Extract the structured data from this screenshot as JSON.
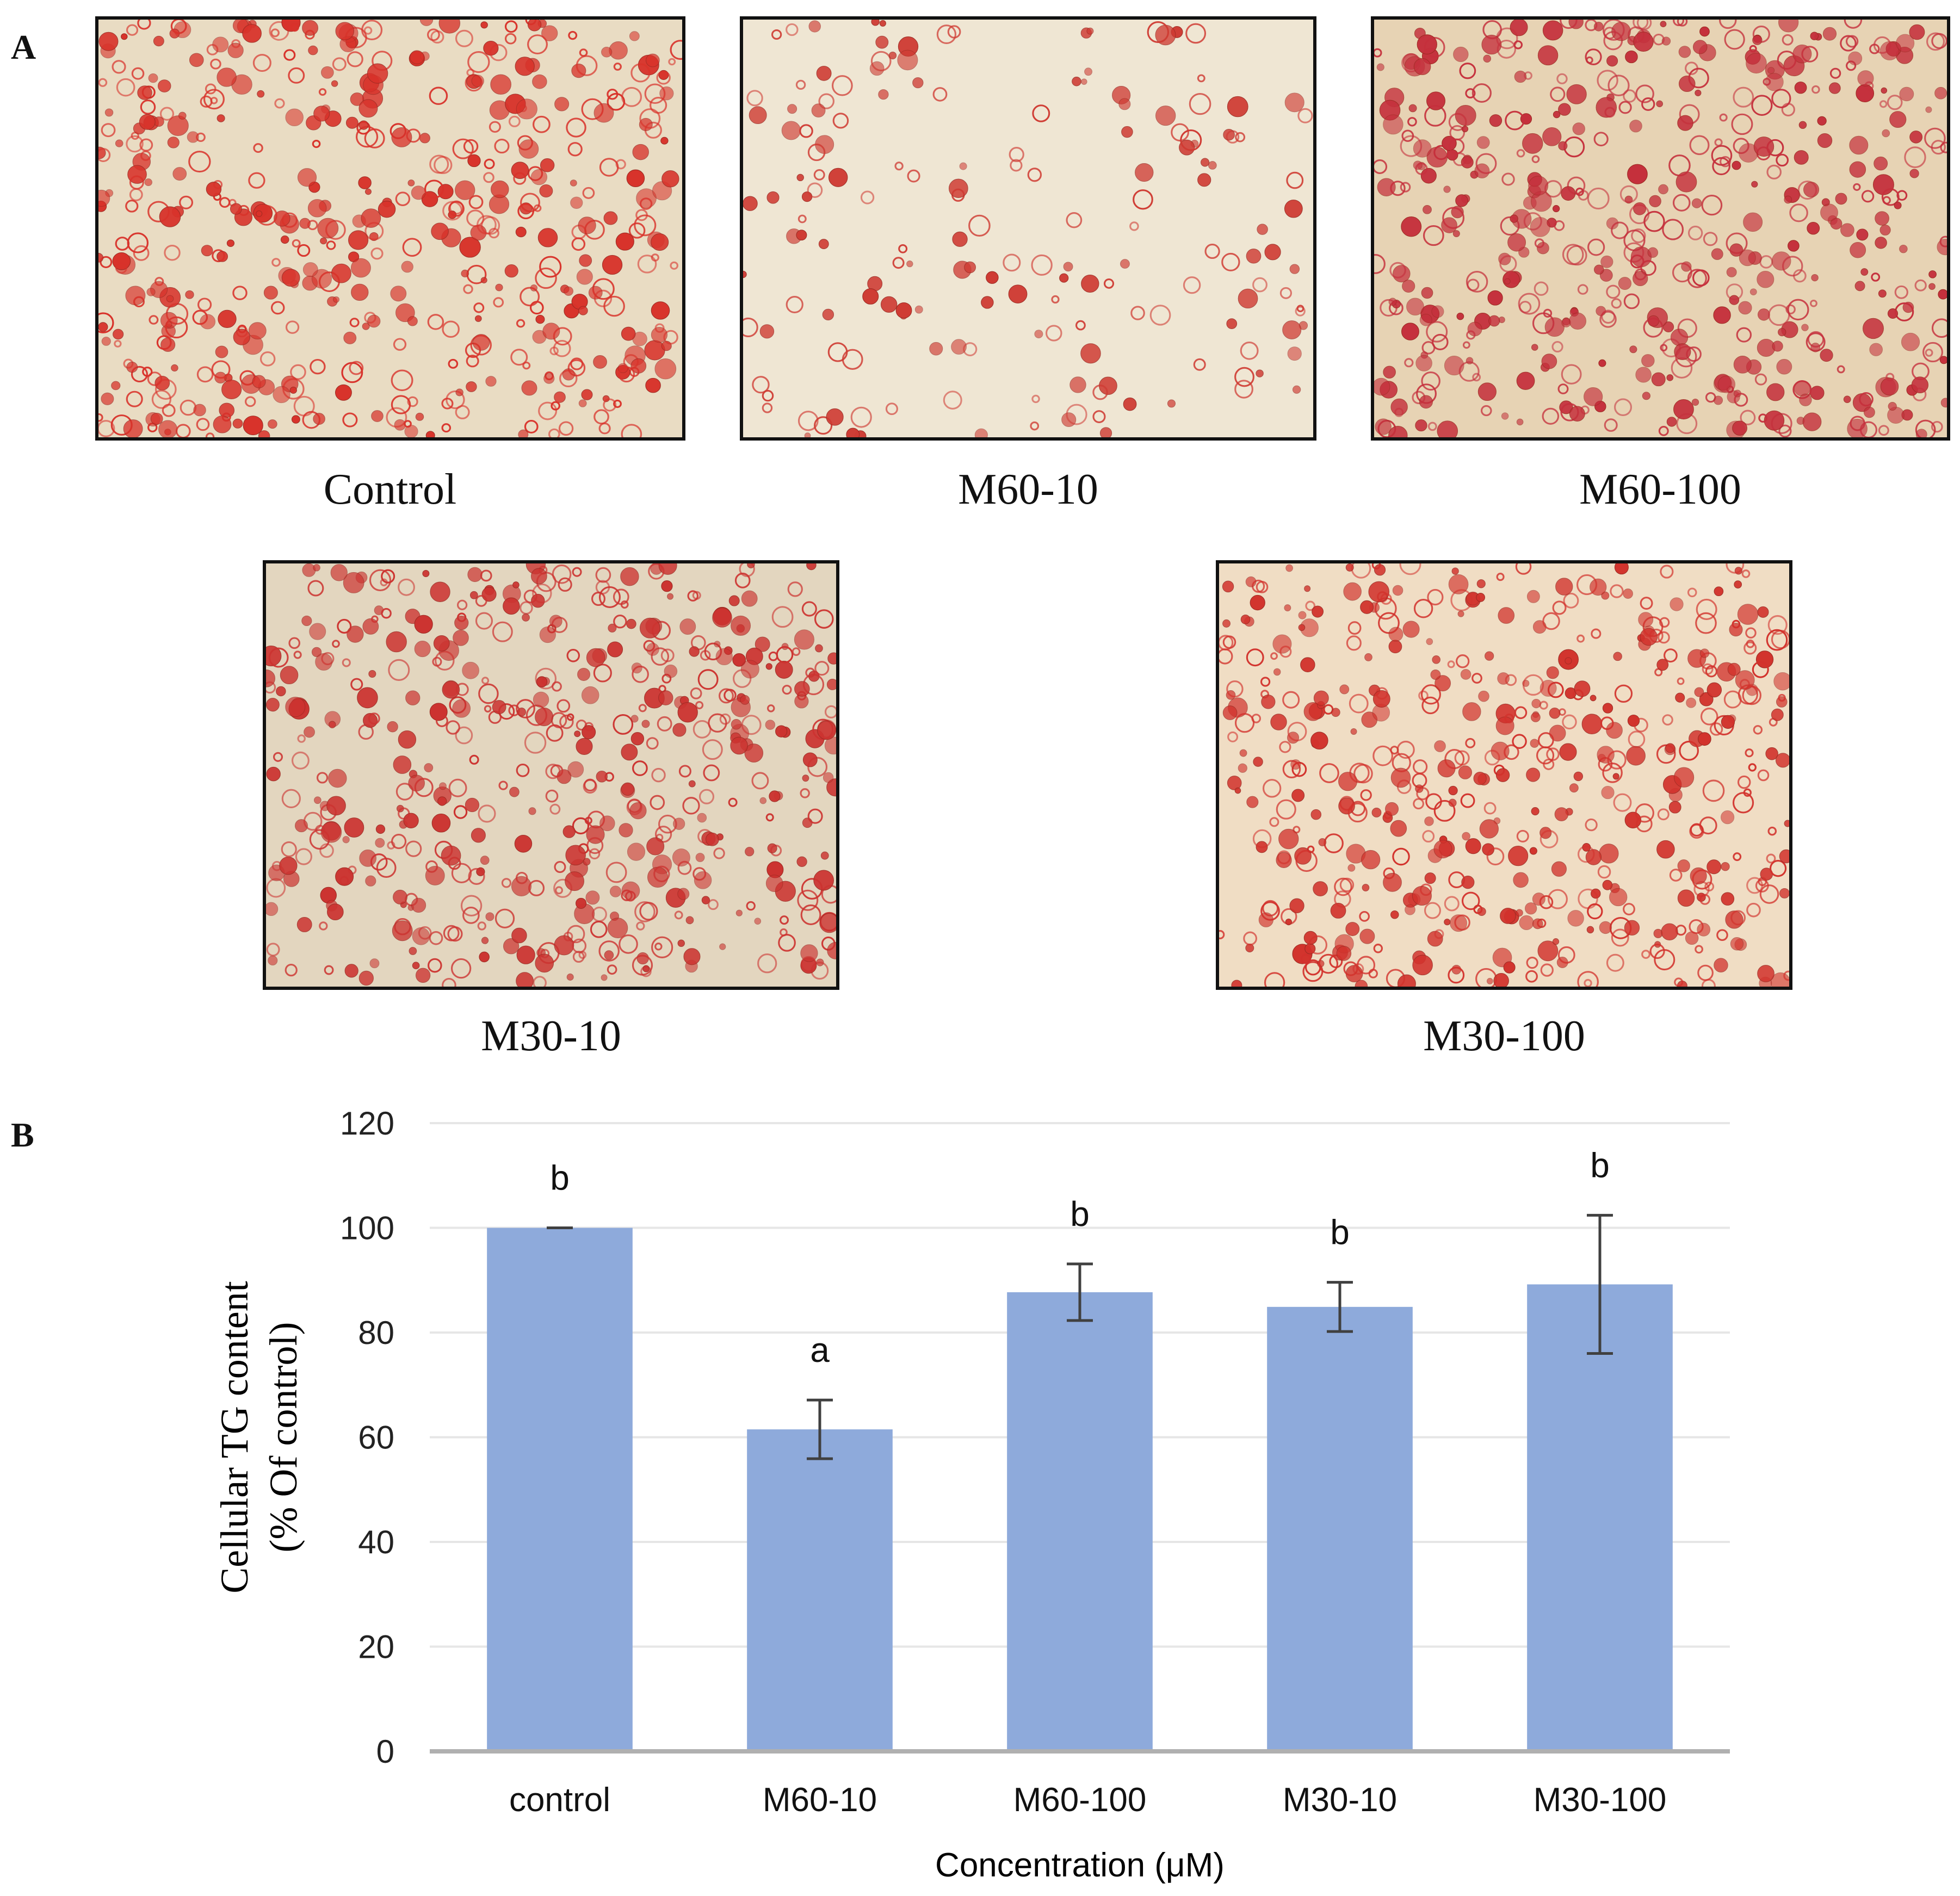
{
  "panel_a": {
    "letter": "A",
    "images": [
      {
        "label": "Control",
        "stain_color": "#d8322a",
        "background": "#e9dcc3",
        "density": "high"
      },
      {
        "label": "M60-10",
        "stain_color": "#cf3b33",
        "background": "#efe6d3",
        "density": "low"
      },
      {
        "label": "M60-100",
        "stain_color": "#c5303c",
        "background": "#e7d3b4",
        "density": "high"
      },
      {
        "label": "M30-10",
        "stain_color": "#cc3330",
        "background": "#e3d6bf",
        "density": "high"
      },
      {
        "label": "M30-100",
        "stain_color": "#d2322c",
        "background": "#f0ddc4",
        "density": "high"
      }
    ]
  },
  "panel_b": {
    "letter": "B"
  },
  "chart_data": {
    "type": "bar",
    "categories": [
      "control",
      "M60-10",
      "M60-100",
      "M30-10",
      "M30-100"
    ],
    "values": [
      100,
      61.5,
      87.7,
      84.9,
      89.2
    ],
    "errors": [
      0,
      5.6,
      5.4,
      4.7,
      13.2
    ],
    "significance": [
      "b",
      "a",
      "b",
      "b",
      "b"
    ],
    "xlabel": "Concentration (μM)",
    "ylabel_line1": "Cellular TG content",
    "ylabel_line2": "(% Of control)",
    "ylim": [
      0,
      120
    ],
    "yticks": [
      0,
      20,
      40,
      60,
      80,
      100,
      120
    ],
    "grid": true,
    "bar_color": "#8eaadb",
    "error_color": "#404040",
    "grid_color": "#e6e6e6",
    "axis_color": "#b0b0b0"
  }
}
